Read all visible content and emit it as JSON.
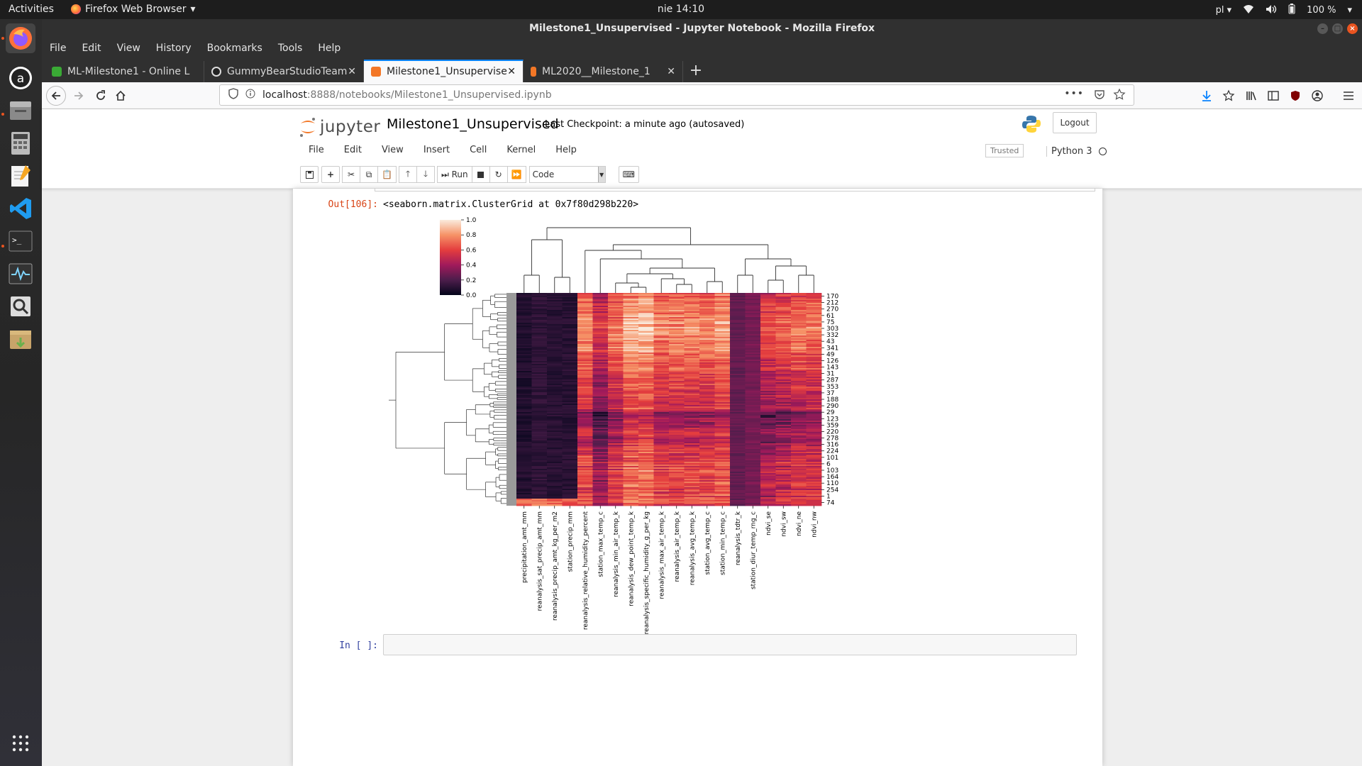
{
  "topbar": {
    "activities": "Activities",
    "app": "Firefox Web Browser",
    "clock": "nie 14:10",
    "lang": "pl",
    "battery": "100 %"
  },
  "window": {
    "title": "Milestone1_Unsupervised - Jupyter Notebook - Mozilla Firefox"
  },
  "menubar": {
    "items": [
      "File",
      "Edit",
      "View",
      "History",
      "Bookmarks",
      "Tools",
      "Help"
    ]
  },
  "tabs": [
    {
      "label": "ML-Milestone1 - Online L",
      "color": "#3aaa35"
    },
    {
      "label": "GummyBearStudioTeam",
      "color": "#222222"
    },
    {
      "label": "Milestone1_Unsupervise",
      "color": "#f37726"
    },
    {
      "label": "ML2020__Milestone_1",
      "color": "#f37726"
    }
  ],
  "url": {
    "host": "localhost",
    "path": ":8888/notebooks/Milestone1_Unsupervised.ipynb"
  },
  "jupyter": {
    "logo_text": "jupyter",
    "notebook_name": "Milestone1_Unsupervised",
    "checkpoint": "Last Checkpoint: a minute ago  (autosaved)",
    "logout": "Logout",
    "menu": [
      "File",
      "Edit",
      "View",
      "Insert",
      "Cell",
      "Kernel",
      "Help"
    ],
    "trusted": "Trusted",
    "kernel": "Python 3",
    "toolbar": {
      "run": "Run",
      "cell_type": "Code"
    }
  },
  "cells": {
    "out_prompt": "Out[106]:",
    "out_text": "<seaborn.matrix.ClusterGrid at 0x7f80d298b220>",
    "in_prompt": "In [ ]:"
  },
  "chart_data": {
    "type": "heatmap",
    "title": "",
    "colorbar": {
      "ticks": [
        0.0,
        0.2,
        0.4,
        0.6,
        0.8,
        1.0
      ],
      "range": [
        0,
        1
      ],
      "colormap": "rocket"
    },
    "columns": [
      "precipitation_amt_mm",
      "reanalysis_sat_precip_amt_mm",
      "reanalysis_precip_amt_kg_per_m2",
      "station_precip_mm",
      "reanalysis_relative_humidity_percent",
      "station_max_temp_c",
      "reanalysis_min_air_temp_k",
      "reanalysis_dew_point_temp_k",
      "reanalysis_specific_humidity_g_per_kg",
      "reanalysis_max_air_temp_k",
      "reanalysis_air_temp_k",
      "reanalysis_avg_temp_k",
      "station_avg_temp_c",
      "station_min_temp_c",
      "reanalysis_tdtr_k",
      "station_diur_temp_rng_c",
      "ndvi_se",
      "ndvi_sw",
      "ndvi_ne",
      "ndvi_nw"
    ],
    "column_means": [
      0.08,
      0.12,
      0.1,
      0.1,
      0.62,
      0.38,
      0.55,
      0.7,
      0.72,
      0.58,
      0.6,
      0.6,
      0.6,
      0.66,
      0.25,
      0.3,
      0.45,
      0.5,
      0.55,
      0.55
    ],
    "row_tick_labels": [
      "170",
      "212",
      "270",
      "61",
      "75",
      "303",
      "332",
      "43",
      "341",
      "49",
      "126",
      "143",
      "31",
      "287",
      "353",
      "37",
      "188",
      "290",
      "29",
      "123",
      "359",
      "220",
      "278",
      "316",
      "224",
      "101",
      "6",
      "103",
      "164",
      "110",
      "254",
      "1",
      "74"
    ],
    "row_dendrogram": true,
    "col_dendrogram": true
  }
}
